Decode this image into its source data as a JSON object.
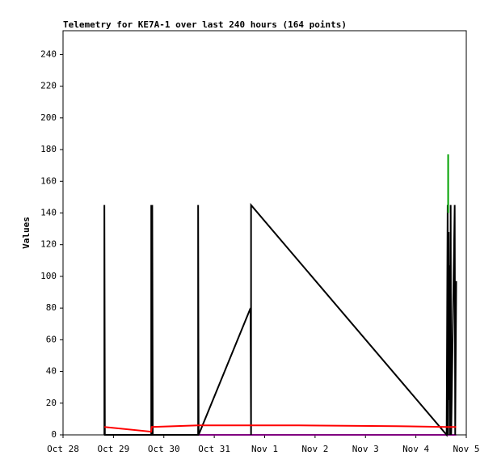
{
  "chart_data": {
    "type": "line",
    "title": "Telemetry for KE7A-1 over last 240 hours (164 points)",
    "y_label": "Values",
    "xlim": [
      0,
      8
    ],
    "ylim": [
      0,
      255
    ],
    "xticks": [
      {
        "value": 0,
        "label": "Oct 28"
      },
      {
        "value": 1,
        "label": "Oct 29"
      },
      {
        "value": 2,
        "label": "Oct 30"
      },
      {
        "value": 3,
        "label": "Oct 31"
      },
      {
        "value": 4,
        "label": "Nov 1"
      },
      {
        "value": 5,
        "label": "Nov 2"
      },
      {
        "value": 6,
        "label": "Nov 3"
      },
      {
        "value": 7,
        "label": "Nov 4"
      },
      {
        "value": 8,
        "label": "Nov 5"
      }
    ],
    "yticks": [
      0,
      20,
      40,
      60,
      80,
      100,
      120,
      140,
      160,
      180,
      200,
      220,
      240
    ],
    "series": [
      {
        "color": "#800080",
        "x": [
          1.76,
          7.8
        ],
        "values": [
          0,
          0
        ]
      },
      {
        "color": "#000000",
        "x": [
          0.82,
          0.82,
          0.83,
          1.75,
          1.75,
          1.76,
          1.77,
          1.78,
          2.68,
          2.68,
          2.69,
          3.72,
          3.73,
          3.73,
          7.61,
          7.63,
          7.64,
          7.65,
          7.66,
          7.67,
          7.68,
          7.69,
          7.7,
          7.77,
          7.78,
          7.8
        ],
        "values": [
          0,
          145,
          0,
          0,
          145,
          0,
          145,
          0,
          0,
          145,
          0,
          80,
          0,
          145,
          0,
          145,
          0,
          128,
          22,
          107,
          0,
          145,
          0,
          145,
          0,
          97
        ]
      },
      {
        "color": "#ff0000",
        "x": [
          0.82,
          1.75,
          1.76,
          2.68,
          3.73,
          4.68,
          6.61,
          7.61,
          7.8
        ],
        "values": [
          5,
          2,
          5,
          6,
          6,
          6,
          5.5,
          5,
          5
        ]
      },
      {
        "color": "#00a000",
        "x": [
          7.64,
          7.64
        ],
        "values": [
          140,
          177
        ]
      }
    ]
  }
}
